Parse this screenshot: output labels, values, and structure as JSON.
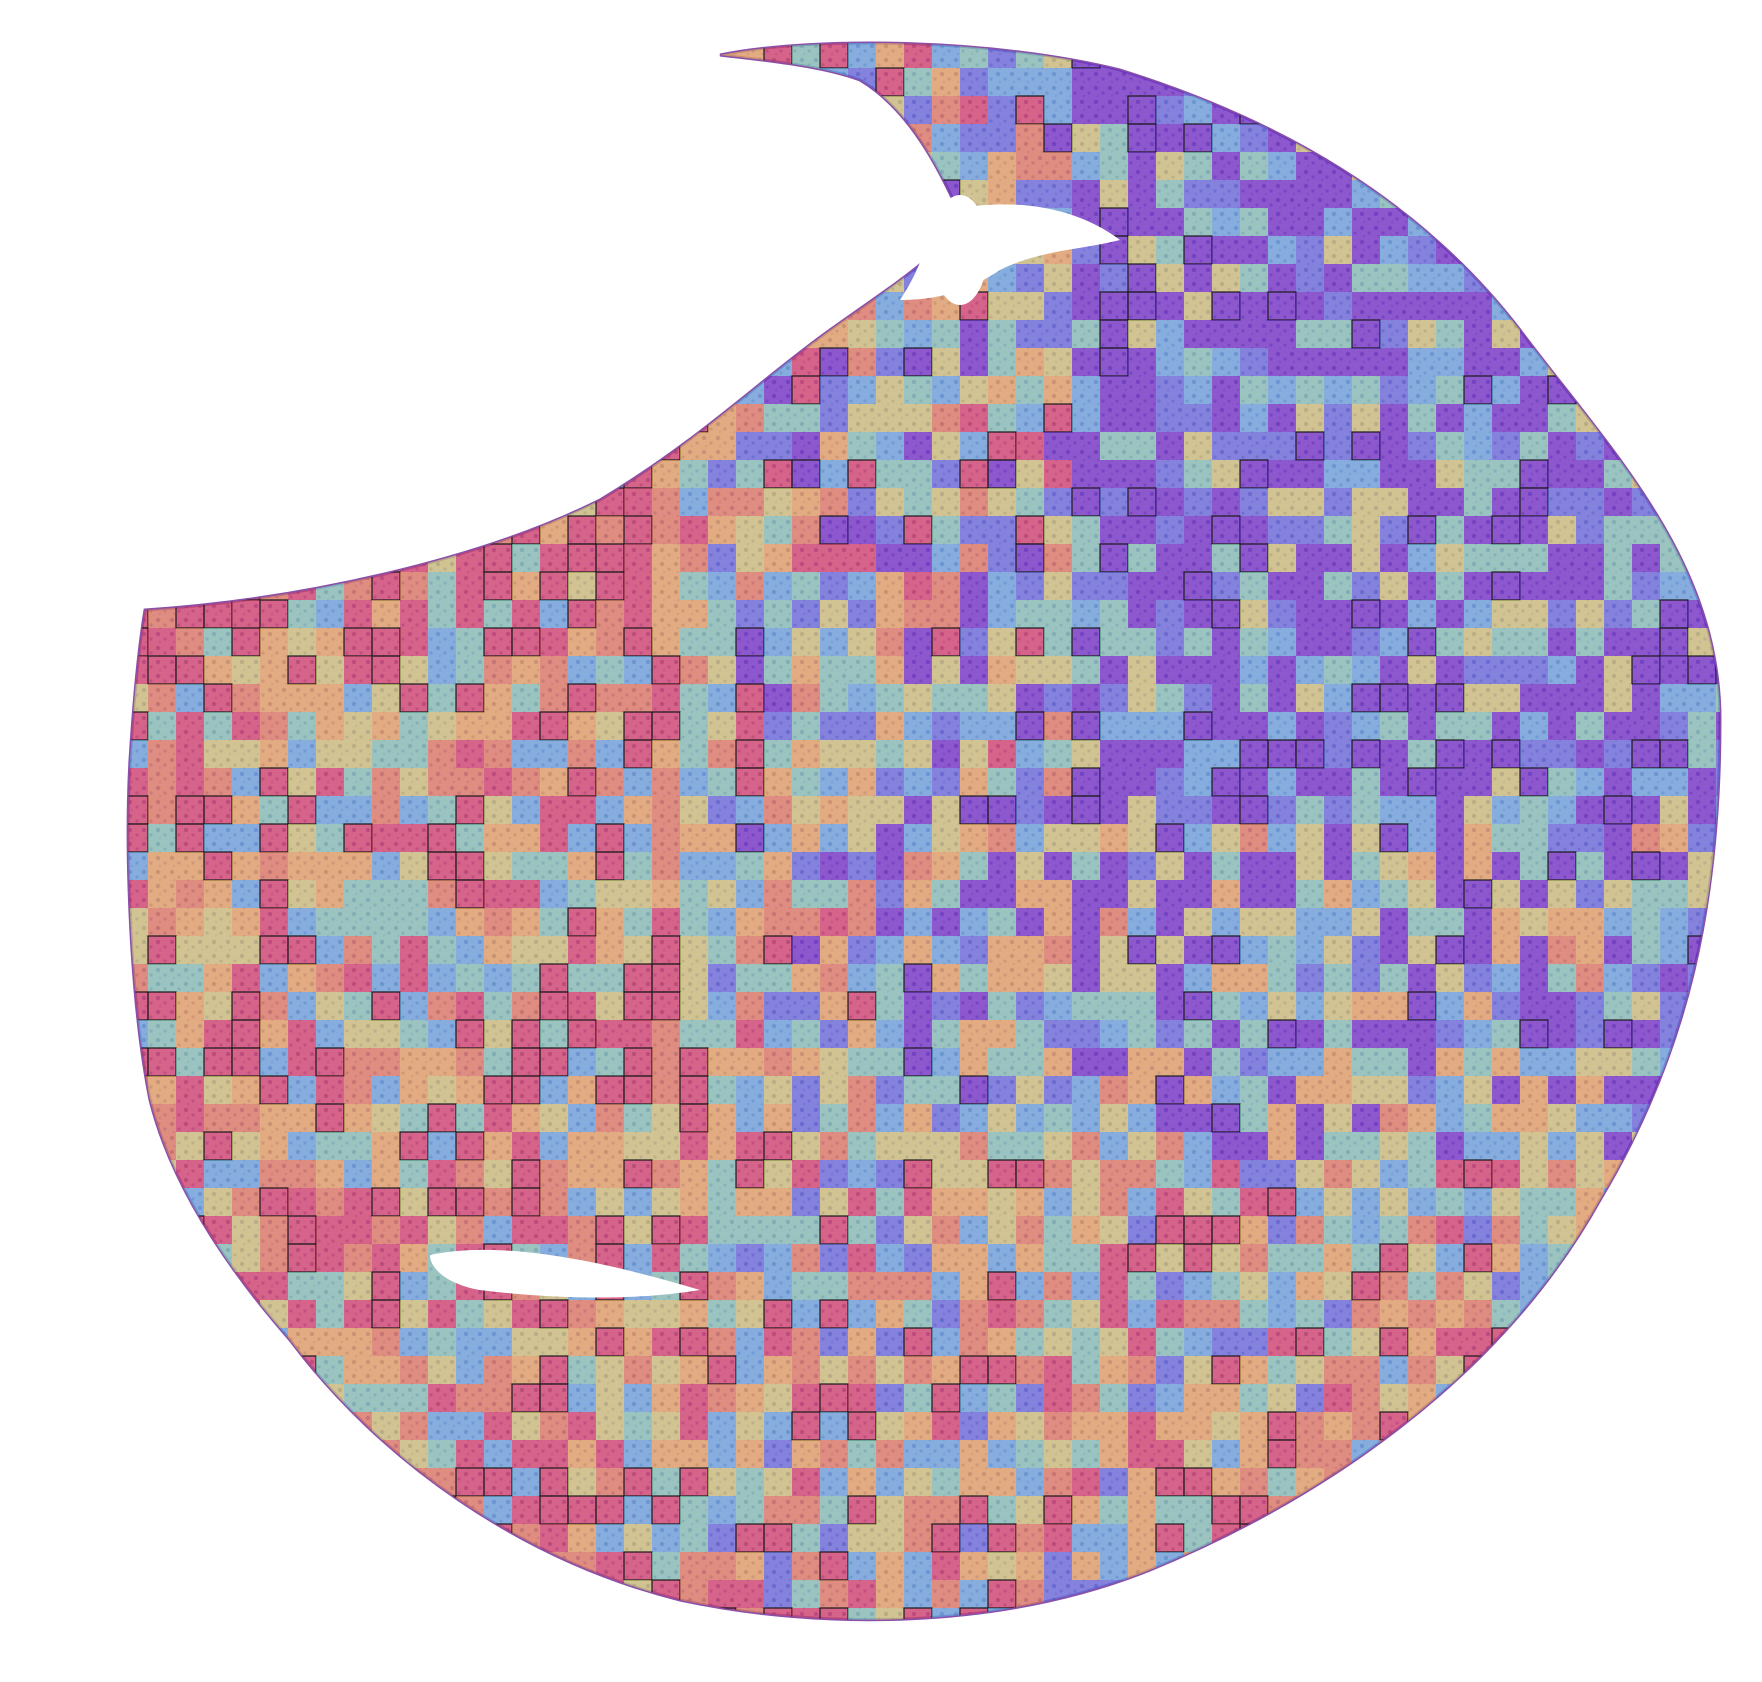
{
  "image": {
    "subject": "tissue-core-attention-heatmap",
    "background_color": "#ffffff",
    "tissue_colors": {
      "hematoxylin_dark": "#5a2a8c",
      "eosin_pink": "#c98fc4",
      "stroma_light": "#d9b8e0"
    },
    "heatmap": {
      "colormap": "jet",
      "opacity": 0.55,
      "palette": [
        "#5b2bd6",
        "#4a78f0",
        "#4fc7f2",
        "#74f0c0",
        "#d8f06a",
        "#f7c24a",
        "#f08a4a",
        "#e0405a"
      ],
      "highlight_border_color": "#1a1a1a"
    }
  }
}
